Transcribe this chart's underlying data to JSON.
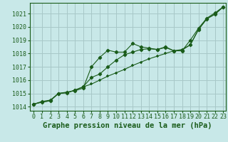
{
  "title": "Graphe pression niveau de la mer (hPa)",
  "bg_color": "#c8e8e8",
  "grid_color": "#a8c8c8",
  "line_color": "#1a5c1a",
  "xlim": [
    -0.5,
    23.3
  ],
  "ylim": [
    1013.7,
    1021.8
  ],
  "xticks": [
    0,
    1,
    2,
    3,
    4,
    5,
    6,
    7,
    8,
    9,
    10,
    11,
    12,
    13,
    14,
    15,
    16,
    17,
    18,
    19,
    20,
    21,
    22,
    23
  ],
  "yticks": [
    1014,
    1015,
    1016,
    1017,
    1018,
    1019,
    1020,
    1021
  ],
  "series": [
    {
      "y": [
        1014.2,
        1014.4,
        1014.5,
        1015.0,
        1015.1,
        1015.2,
        1015.4,
        1017.0,
        1017.7,
        1018.25,
        1018.1,
        1018.1,
        1018.75,
        1018.5,
        1018.4,
        1018.3,
        1018.5,
        1018.2,
        1018.2,
        1019.0,
        1019.9,
        1020.65,
        1021.05,
        1021.5
      ],
      "marker": "D",
      "ms": 2.2
    },
    {
      "y": [
        1014.2,
        1014.35,
        1014.45,
        1015.0,
        1015.05,
        1015.25,
        1015.5,
        1016.2,
        1016.45,
        1017.0,
        1017.5,
        1017.9,
        1018.1,
        1018.3,
        1018.35,
        1018.3,
        1018.45,
        1018.2,
        1018.25,
        1018.65,
        1019.8,
        1020.6,
        1020.95,
        1021.5
      ],
      "marker": "D",
      "ms": 2.2
    },
    {
      "y": [
        1014.2,
        1014.35,
        1014.45,
        1015.0,
        1015.05,
        1015.25,
        1015.5,
        1015.7,
        1016.0,
        1016.3,
        1016.55,
        1016.8,
        1017.1,
        1017.35,
        1017.6,
        1017.8,
        1018.0,
        1018.2,
        1018.3,
        1018.65,
        1019.8,
        1020.6,
        1020.95,
        1021.5
      ],
      "marker": "+",
      "ms": 3.5
    }
  ],
  "title_fontsize": 7.5,
  "tick_fontsize": 6.0
}
